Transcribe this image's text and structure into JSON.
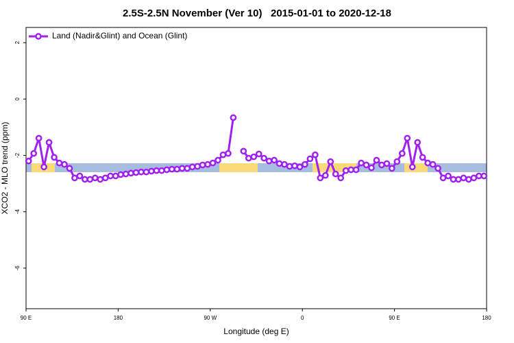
{
  "chart_data": {
    "type": "line",
    "title": "2.5S-2.5N November (Ver 10)   2015-01-01 to 2020-12-18",
    "x_label": "Longitude (deg E)",
    "y_label": "XCO2 - MLO trend (ppm)",
    "xlim": [
      90,
      540
    ],
    "ylim": [
      -7.44,
      2.54
    ],
    "xticks": [
      {
        "value": 90,
        "label": "90 E"
      },
      180,
      {
        "value": 270,
        "label": "90 W"
      },
      {
        "value": 360,
        "label": "0"
      },
      {
        "value": 450,
        "label": "90 E"
      },
      {
        "value": 540,
        "label": "180"
      }
    ],
    "yticks": [
      -6,
      -4,
      -2,
      0,
      2
    ],
    "legend": "top-left",
    "x": [
      92.5,
      97.5,
      102.5,
      107.5,
      112.5,
      117.5,
      122.5,
      127.5,
      132.5,
      137.5,
      142.5,
      147.5,
      152.5,
      157.5,
      162.5,
      167.5,
      172.5,
      177.5,
      182.5,
      187.5,
      192.5,
      197.5,
      202.5,
      207.5,
      212.5,
      217.5,
      222.5,
      227.5,
      232.5,
      237.5,
      242.5,
      247.5,
      252.5,
      257.5,
      262.5,
      267.5,
      272.5,
      277.5,
      282.5,
      287.5,
      292.5,
      297.5,
      302.5,
      307.5,
      312.5,
      317.5,
      322.5,
      327.5,
      332.5,
      337.5,
      342.5,
      347.5,
      352.5,
      357.5,
      362.5,
      367.5,
      372.5,
      377.5,
      382.5,
      387.5,
      392.5,
      397.5,
      402.5,
      407.5,
      412.5,
      417.5,
      422.5,
      427.5,
      432.5,
      437.5,
      442.5,
      447.5,
      452.5,
      457.5,
      462.5,
      467.5,
      472.5,
      477.5,
      482.5,
      487.5,
      492.5,
      497.5,
      502.5,
      507.5,
      512.5,
      517.5,
      522.5,
      527.5,
      532.5,
      537.5
    ],
    "series": [
      {
        "name": "Land (Nadir&Glint) and Ocean (Glint)",
        "color": "#a020f0",
        "values": [
          -2.2,
          -1.93,
          -1.39,
          -2.41,
          -1.54,
          -2.07,
          -2.27,
          -2.32,
          -2.46,
          -2.8,
          -2.73,
          -2.85,
          -2.85,
          -2.8,
          -2.85,
          -2.8,
          -2.73,
          -2.73,
          -2.68,
          -2.66,
          -2.63,
          -2.61,
          -2.59,
          -2.59,
          -2.56,
          -2.54,
          -2.54,
          -2.51,
          -2.49,
          -2.49,
          -2.46,
          -2.46,
          -2.41,
          -2.39,
          -2.34,
          -2.32,
          -2.27,
          -2.17,
          -1.98,
          -1.93,
          -0.66,
          null,
          -1.85,
          -2.1,
          -2.05,
          -1.95,
          -2.1,
          -2.2,
          -2.17,
          -2.29,
          -2.32,
          -2.39,
          -2.37,
          -2.41,
          -2.32,
          -2.12,
          -1.98,
          -2.8,
          -2.71,
          -2.22,
          -2.66,
          -2.8,
          -2.54,
          -2.51,
          -2.51,
          -2.27,
          -2.34,
          -2.44,
          -2.17,
          -2.34,
          -2.29,
          -2.46,
          -2.22,
          -1.93,
          -1.39,
          -2.41,
          -1.54,
          -2.07,
          -2.27,
          -2.32,
          -2.46,
          -2.8,
          -2.73,
          -2.85,
          -2.85,
          -2.8,
          -2.85,
          -2.8,
          -2.73,
          -2.73
        ]
      }
    ]
  }
}
